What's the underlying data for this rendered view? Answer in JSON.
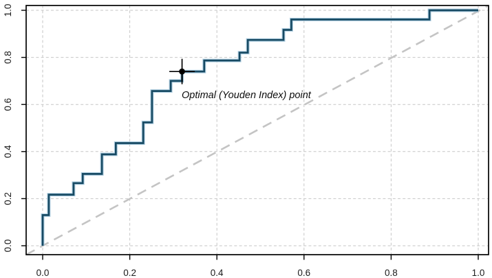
{
  "chart_data": {
    "type": "line",
    "subtype": "roc-step-curve",
    "title": "",
    "xlabel": "",
    "ylabel": "",
    "xlim": [
      0,
      1
    ],
    "ylim": [
      0,
      1
    ],
    "grid": "light gray dashed gridlines at 0.2 intervals on both axes",
    "legend": "none",
    "x_tick_labels": [
      "0.0",
      "0.2",
      "0.4",
      "0.6",
      "0.8",
      "1.0"
    ],
    "y_tick_labels": [
      "0.0",
      "0.2",
      "0.4",
      "0.6",
      "0.8",
      "1.0"
    ],
    "series": [
      {
        "name": "ROC curve",
        "style": "step",
        "color": "#174a63",
        "halo_color": "#aecde0",
        "points": [
          [
            0.0,
            0.0
          ],
          [
            0.0,
            0.13
          ],
          [
            0.014,
            0.13
          ],
          [
            0.014,
            0.217
          ],
          [
            0.071,
            0.217
          ],
          [
            0.071,
            0.266
          ],
          [
            0.092,
            0.266
          ],
          [
            0.092,
            0.305
          ],
          [
            0.136,
            0.305
          ],
          [
            0.136,
            0.388
          ],
          [
            0.168,
            0.388
          ],
          [
            0.168,
            0.436
          ],
          [
            0.231,
            0.436
          ],
          [
            0.231,
            0.524
          ],
          [
            0.251,
            0.524
          ],
          [
            0.251,
            0.657
          ],
          [
            0.294,
            0.657
          ],
          [
            0.294,
            0.7
          ],
          [
            0.32,
            0.7
          ],
          [
            0.32,
            0.74
          ],
          [
            0.371,
            0.74
          ],
          [
            0.371,
            0.787
          ],
          [
            0.452,
            0.787
          ],
          [
            0.452,
            0.82
          ],
          [
            0.471,
            0.82
          ],
          [
            0.471,
            0.874
          ],
          [
            0.553,
            0.874
          ],
          [
            0.553,
            0.917
          ],
          [
            0.571,
            0.917
          ],
          [
            0.571,
            0.961
          ],
          [
            0.888,
            0.961
          ],
          [
            0.888,
            1.0
          ],
          [
            1.0,
            1.0
          ]
        ]
      },
      {
        "name": "chance diagonal",
        "style": "dashed",
        "color": "#c4c4c4",
        "points": [
          [
            0,
            0
          ],
          [
            1,
            1
          ]
        ]
      }
    ],
    "optimal_point": {
      "x": 0.32,
      "y": 0.74,
      "marker": "black filled circle with crosshair",
      "label": "Optimal (Youden Index) point"
    }
  },
  "colors": {
    "background": "#ffffff",
    "curve": "#174a63",
    "curve_halo": "#aecde0",
    "gridline": "#c6c6c6",
    "diagonal": "#c4c4c4",
    "axis": "#000000",
    "tick_text": "#1b1b1b",
    "annotation_text": "#0c0c0c"
  }
}
